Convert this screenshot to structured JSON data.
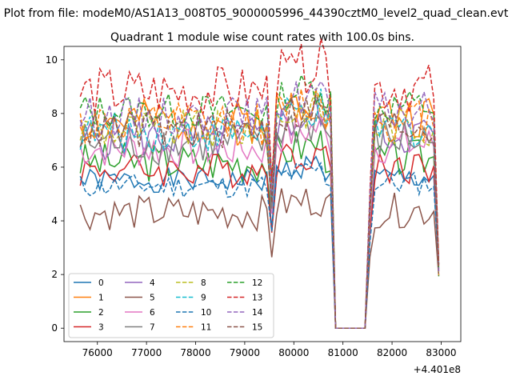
{
  "chart_data": {
    "type": "line",
    "suptitle": "Plot from file: modeM0/AS1A13_008T05_9000005996_44390cztM0_level2_quad_clean.evt",
    "title": "Quadrant 1 module wise count rates with 100.0s bins.",
    "xlabel": "",
    "ylabel": "",
    "x_offset_label": "+4.401e8",
    "xlim": [
      75320,
      83400
    ],
    "ylim": [
      -0.5,
      10.5
    ],
    "xticks": [
      76000,
      77000,
      78000,
      79000,
      80000,
      81000,
      82000,
      83000
    ],
    "xtick_labels": [
      "76000",
      "77000",
      "78000",
      "79000",
      "80000",
      "81000",
      "82000",
      "83000"
    ],
    "yticks": [
      0,
      2,
      4,
      6,
      8,
      10
    ],
    "ytick_labels": [
      "0",
      "2",
      "4",
      "6",
      "8",
      "10"
    ],
    "legend_position": "lower-left",
    "legend_columns": 4,
    "x_segments": [
      [
        75650,
        79550
      ],
      [
        79550,
        80550
      ],
      [
        80550,
        80850
      ],
      [
        80850,
        81450
      ],
      [
        81450,
        81550
      ],
      [
        81550,
        82950
      ]
    ],
    "series": [
      {
        "name": "0",
        "color": "#1f77b4",
        "dashed": false,
        "base": 5.5,
        "amp": 0.15,
        "seed": 1
      },
      {
        "name": "1",
        "color": "#ff7f0e",
        "dashed": false,
        "base": 7.7,
        "amp": 0.28,
        "seed": 2
      },
      {
        "name": "2",
        "color": "#2ca02c",
        "dashed": false,
        "base": 6.2,
        "amp": 0.25,
        "seed": 3
      },
      {
        "name": "3",
        "color": "#d62728",
        "dashed": false,
        "base": 5.9,
        "amp": 0.22,
        "seed": 4
      },
      {
        "name": "4",
        "color": "#9467bd",
        "dashed": false,
        "base": 7.1,
        "amp": 0.28,
        "seed": 5
      },
      {
        "name": "5",
        "color": "#8c564b",
        "dashed": false,
        "base": 4.3,
        "amp": 0.22,
        "seed": 6
      },
      {
        "name": "6",
        "color": "#e377c2",
        "dashed": false,
        "base": 6.7,
        "amp": 0.25,
        "seed": 7
      },
      {
        "name": "7",
        "color": "#7f7f7f",
        "dashed": false,
        "base": 6.9,
        "amp": 0.28,
        "seed": 8
      },
      {
        "name": "8",
        "color": "#bcbd22",
        "dashed": true,
        "base": 7.4,
        "amp": 0.25,
        "seed": 9
      },
      {
        "name": "9",
        "color": "#17becf",
        "dashed": true,
        "base": 7.3,
        "amp": 0.25,
        "seed": 10
      },
      {
        "name": "10",
        "color": "#1f77b4",
        "dashed": true,
        "base": 5.3,
        "amp": 0.15,
        "seed": 11
      },
      {
        "name": "11",
        "color": "#ff7f0e",
        "dashed": true,
        "base": 7.6,
        "amp": 0.28,
        "seed": 12
      },
      {
        "name": "12",
        "color": "#2ca02c",
        "dashed": true,
        "base": 8.1,
        "amp": 0.22,
        "seed": 13
      },
      {
        "name": "13",
        "color": "#d62728",
        "dashed": true,
        "base": 8.8,
        "amp": 0.32,
        "seed": 14
      },
      {
        "name": "14",
        "color": "#9467bd",
        "dashed": true,
        "base": 7.9,
        "amp": 0.25,
        "seed": 15
      },
      {
        "name": "15",
        "color": "#8c564b",
        "dashed": true,
        "base": 7.4,
        "amp": 0.25,
        "seed": 16
      }
    ]
  }
}
